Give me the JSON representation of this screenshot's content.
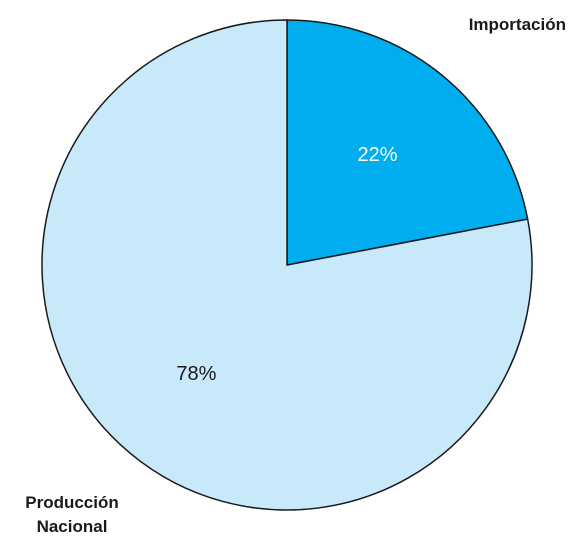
{
  "chart_data": {
    "type": "pie",
    "categories": [
      "Importación",
      "Producción Nacional"
    ],
    "values": [
      22,
      78
    ],
    "value_labels": [
      "22%",
      "78%"
    ],
    "colors": [
      "#00aeef",
      "#c8e9f9"
    ],
    "label_colors": [
      "#ffffff",
      "#1a1a1a"
    ],
    "start_angle_deg": 0,
    "direction": "clockwise"
  }
}
